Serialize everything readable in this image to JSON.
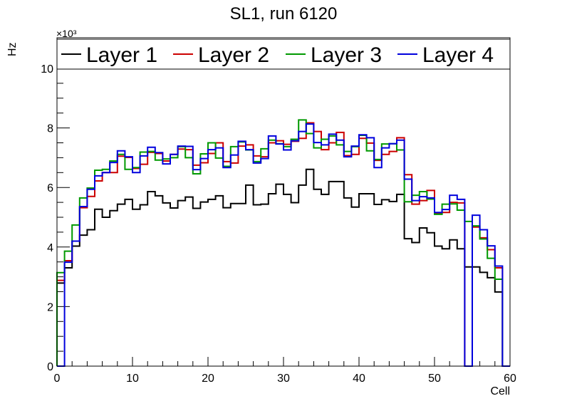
{
  "chart_data": {
    "type": "line",
    "style": "step-histogram",
    "title": "SL1, run 6120",
    "xlabel": "Cell",
    "ylabel": "Hz",
    "y_multiplier_label": "×10³",
    "xlim": [
      0,
      60
    ],
    "ylim": [
      0,
      10.9
    ],
    "x_ticks": [
      "0",
      "10",
      "20",
      "30",
      "40",
      "50",
      "60"
    ],
    "y_ticks": [
      "0",
      "2",
      "4",
      "6",
      "8",
      "10"
    ],
    "y_units": "thousands of Hz",
    "legend_placement": "top",
    "bins": 60,
    "series": [
      {
        "name": "Layer 1",
        "color": "#000000",
        "values": [
          2.79,
          3.3,
          4.03,
          4.4,
          4.58,
          5.27,
          5.0,
          5.22,
          5.44,
          5.6,
          5.27,
          5.42,
          5.86,
          5.72,
          5.48,
          5.31,
          5.56,
          5.68,
          5.3,
          5.51,
          5.6,
          5.72,
          5.32,
          5.46,
          5.46,
          6.08,
          5.42,
          5.44,
          5.79,
          6.11,
          5.77,
          5.49,
          6.08,
          6.61,
          5.94,
          5.77,
          6.2,
          6.2,
          5.65,
          5.34,
          5.79,
          5.79,
          5.43,
          5.59,
          5.53,
          5.77,
          4.28,
          4.15,
          4.64,
          4.48,
          4.03,
          3.94,
          4.24,
          3.94,
          3.33,
          3.33,
          3.15,
          2.97,
          2.49,
          0
        ]
      },
      {
        "name": "Layer 2",
        "color": "#cc0000",
        "values": [
          2.88,
          3.54,
          4.2,
          5.32,
          5.7,
          6.22,
          6.5,
          6.5,
          7.05,
          7.01,
          6.64,
          6.78,
          7.18,
          7.14,
          6.89,
          7.11,
          7.29,
          7.27,
          6.75,
          6.83,
          7.14,
          7.5,
          6.87,
          6.82,
          7.39,
          7.43,
          7.06,
          7.03,
          7.5,
          7.57,
          7.45,
          7.55,
          7.65,
          8.17,
          7.88,
          7.27,
          7.5,
          7.85,
          7.07,
          7.11,
          7.65,
          7.49,
          6.91,
          7.11,
          7.21,
          7.67,
          6.43,
          5.44,
          5.56,
          5.9,
          5.14,
          5.16,
          5.5,
          5.48,
          0,
          4.67,
          4.31,
          3.91,
          3.3,
          0
        ]
      },
      {
        "name": "Layer 3",
        "color": "#009900",
        "values": [
          3.14,
          3.86,
          4.74,
          5.65,
          5.98,
          6.58,
          6.61,
          6.89,
          7.11,
          6.61,
          6.67,
          7.19,
          7.21,
          6.92,
          6.96,
          7.0,
          7.37,
          7.0,
          6.46,
          7.13,
          7.5,
          6.99,
          6.71,
          7.37,
          7.53,
          7.26,
          6.87,
          7.3,
          7.59,
          7.47,
          7.37,
          7.62,
          8.27,
          7.81,
          7.33,
          7.62,
          7.73,
          7.43,
          7.21,
          7.37,
          7.75,
          7.23,
          6.94,
          7.46,
          7.47,
          7.26,
          5.52,
          5.74,
          5.86,
          5.61,
          5.1,
          5.44,
          5.45,
          5.24,
          4.86,
          4.71,
          4.27,
          3.62,
          2.92,
          0
        ]
      },
      {
        "name": "Layer 4",
        "color": "#0000dd",
        "values": [
          0,
          3.49,
          4.2,
          5.36,
          5.94,
          6.39,
          6.5,
          6.84,
          7.23,
          7.03,
          6.5,
          7.06,
          7.35,
          7.17,
          6.79,
          7.11,
          7.39,
          7.38,
          6.6,
          6.97,
          7.27,
          7.33,
          6.67,
          7.09,
          7.55,
          7.27,
          6.82,
          6.97,
          7.73,
          7.46,
          7.26,
          7.57,
          7.88,
          8.13,
          7.51,
          7.43,
          7.79,
          7.59,
          7.03,
          7.39,
          7.77,
          7.67,
          6.67,
          7.33,
          7.47,
          7.59,
          6.28,
          5.56,
          5.69,
          5.65,
          5.16,
          5.26,
          5.74,
          5.6,
          0,
          5.07,
          4.58,
          4.04,
          3.36,
          0
        ]
      }
    ]
  }
}
